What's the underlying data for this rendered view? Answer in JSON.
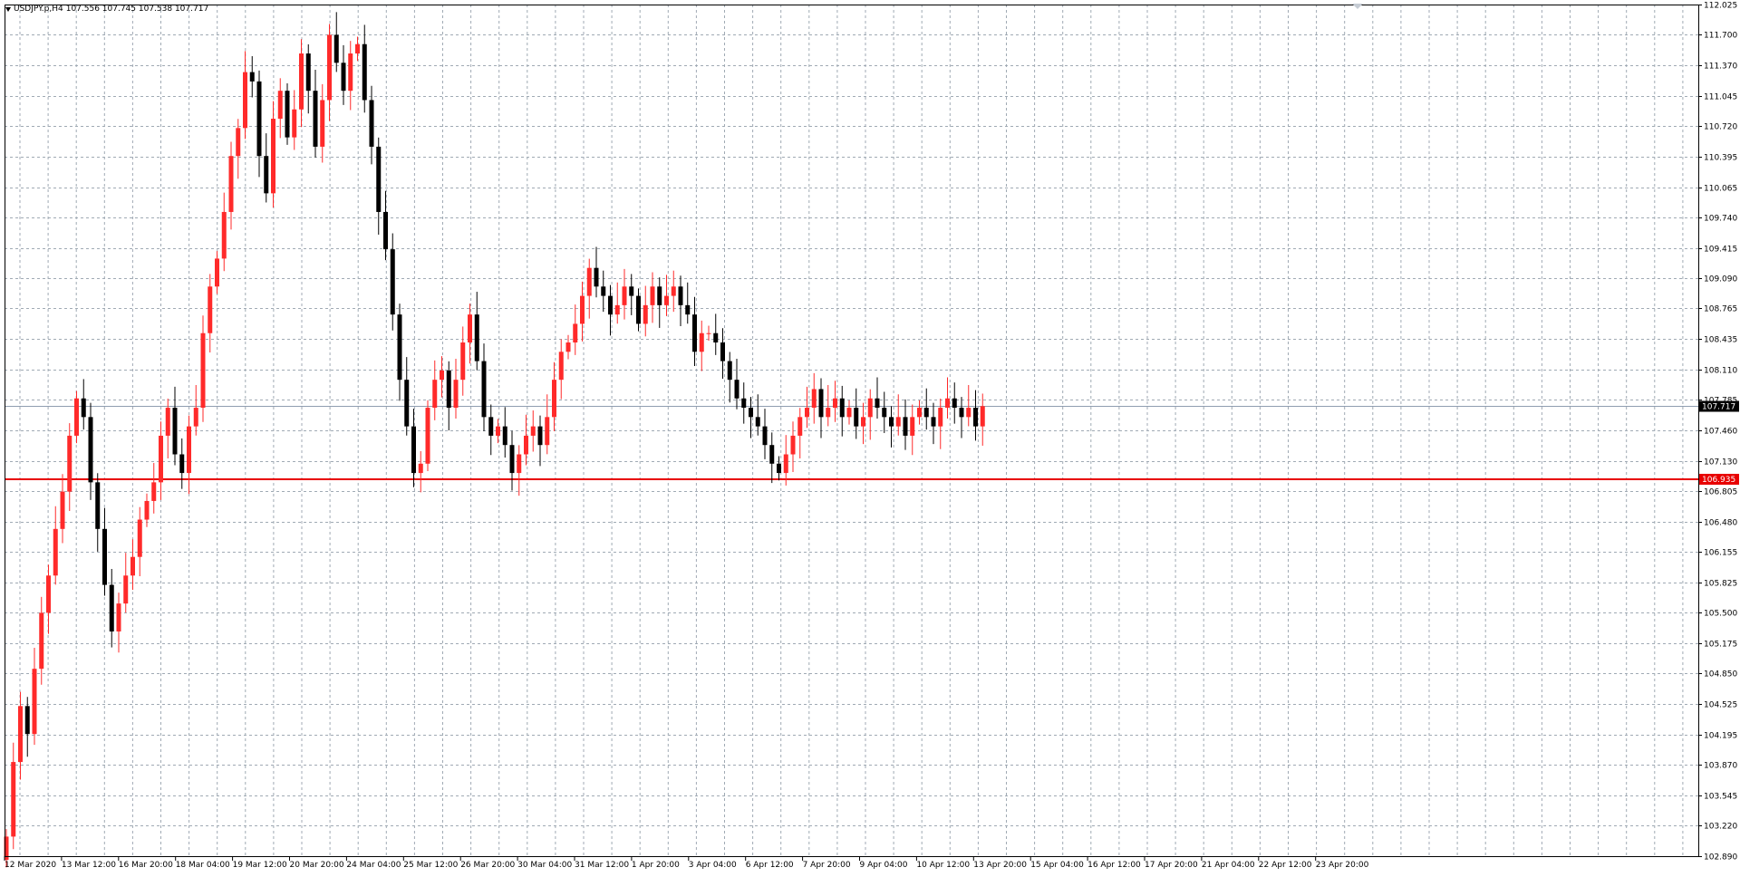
{
  "header": {
    "symbol": "USDJPY.p,H4",
    "ohlc": "107.556 107.745 107.538 107.717"
  },
  "colors": {
    "background": "#ffffff",
    "grid": "#a0aab4",
    "bull": "#ff2a2a",
    "bear": "#000000",
    "bid_line": "#8f9db0",
    "level_line": "#e80000"
  },
  "chart_data": {
    "type": "candlestick",
    "timeframe": "H4",
    "y_ticks": [
      "112.025",
      "111.700",
      "111.370",
      "111.045",
      "110.720",
      "110.395",
      "110.065",
      "109.740",
      "109.415",
      "109.090",
      "108.765",
      "108.435",
      "108.110",
      "107.785",
      "107.460",
      "107.130",
      "106.805",
      "106.480",
      "106.155",
      "105.825",
      "105.500",
      "105.175",
      "104.850",
      "104.525",
      "104.195",
      "103.870",
      "103.545",
      "103.220",
      "102.890"
    ],
    "x_ticks": [
      "12 Mar 2020",
      "13 Mar 12:00",
      "16 Mar 20:00",
      "18 Mar 04:00",
      "19 Mar 12:00",
      "20 Mar 20:00",
      "24 Mar 04:00",
      "25 Mar 12:00",
      "26 Mar 20:00",
      "30 Mar 04:00",
      "31 Mar 12:00",
      "1 Apr 20:00",
      "3 Apr 04:00",
      "6 Apr 12:00",
      "7 Apr 20:00",
      "9 Apr 04:00",
      "10 Apr 12:00",
      "13 Apr 20:00",
      "15 Apr 04:00",
      "16 Apr 12:00",
      "17 Apr 20:00",
      "21 Apr 04:00",
      "22 Apr 12:00",
      "23 Apr 20:00"
    ],
    "ylim": [
      102.89,
      112.025
    ],
    "current_price": {
      "label": "107.717",
      "value": 107.717
    },
    "level_line": {
      "label": "106.935",
      "value": 106.935
    },
    "closes": [
      103.1,
      103.9,
      104.5,
      104.2,
      104.9,
      105.5,
      105.9,
      106.4,
      106.8,
      107.4,
      107.8,
      107.6,
      106.9,
      106.4,
      105.8,
      105.3,
      105.6,
      105.9,
      106.1,
      106.5,
      106.7,
      106.9,
      107.4,
      107.7,
      107.2,
      107.0,
      107.5,
      107.7,
      108.5,
      109.0,
      109.3,
      109.8,
      110.4,
      110.7,
      111.3,
      111.2,
      110.4,
      110.0,
      110.8,
      111.1,
      110.6,
      110.9,
      111.5,
      111.1,
      110.5,
      111.0,
      111.7,
      111.4,
      111.1,
      111.5,
      111.6,
      111.0,
      110.5,
      109.8,
      109.4,
      108.7,
      108.0,
      107.5,
      107.0,
      107.1,
      107.7,
      108.0,
      108.1,
      107.7,
      108.0,
      108.4,
      108.7,
      108.2,
      107.6,
      107.4,
      107.5,
      107.3,
      107.0,
      107.2,
      107.4,
      107.5,
      107.3,
      107.6,
      108.0,
      108.3,
      108.4,
      108.6,
      108.9,
      109.2,
      109.0,
      108.9,
      108.7,
      108.8,
      109.0,
      108.9,
      108.6,
      108.8,
      109.0,
      108.8,
      108.9,
      109.0,
      108.8,
      108.7,
      108.3,
      108.5,
      108.5,
      108.4,
      108.2,
      108.0,
      107.8,
      107.7,
      107.6,
      107.5,
      107.3,
      107.1,
      107.0,
      107.2,
      107.4,
      107.6,
      107.7,
      107.9,
      107.6,
      107.7,
      107.8,
      107.6,
      107.7,
      107.5,
      107.6,
      107.8,
      107.7,
      107.6,
      107.5,
      107.6,
      107.4,
      107.6,
      107.7,
      107.6,
      107.5,
      107.7,
      107.8,
      107.7,
      107.6,
      107.7,
      107.5,
      107.717
    ]
  }
}
